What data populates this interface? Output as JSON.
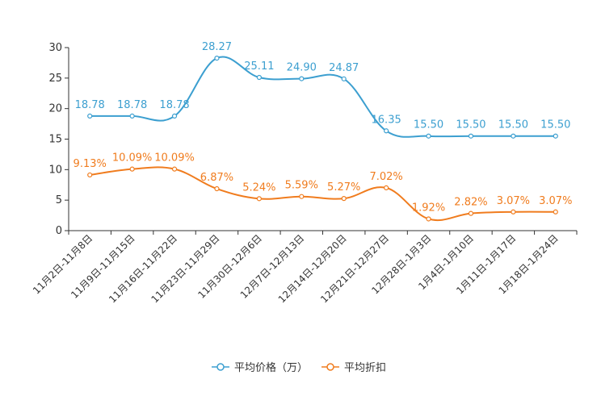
{
  "chart_data": {
    "type": "line",
    "categories": [
      "11月2日-11月8日",
      "11月9日-11月15日",
      "11月16日-11月22日",
      "11月23日-11月29日",
      "11月30日-12月6日",
      "12月7日-12月13日",
      "12月14日-12月20日",
      "12月21日-12月27日",
      "12月28日-1月3日",
      "1月4日-1月10日",
      "1月11日-1月17日",
      "1月18日-1月24日"
    ],
    "ylim": [
      0,
      30
    ],
    "yticks": [
      "0",
      "5",
      "10",
      "15",
      "20",
      "25",
      "30"
    ],
    "series": [
      {
        "name": "平均价格（万）",
        "color": "#3c9fd0",
        "values": [
          18.78,
          18.78,
          18.78,
          28.27,
          25.11,
          24.9,
          24.87,
          16.35,
          15.5,
          15.5,
          15.5,
          15.5
        ],
        "labels": [
          "18.78",
          "18.78",
          "18.78",
          "28.27",
          "25.11",
          "24.90",
          "24.87",
          "16.35",
          "15.50",
          "15.50",
          "15.50",
          "15.50"
        ]
      },
      {
        "name": "平均折扣",
        "color": "#f07c1e",
        "values": [
          9.13,
          10.09,
          10.09,
          6.87,
          5.24,
          5.59,
          5.27,
          7.02,
          1.92,
          2.82,
          3.07,
          3.07
        ],
        "labels": [
          "9.13%",
          "10.09%",
          "10.09%",
          "6.87%",
          "5.24%",
          "5.59%",
          "5.27%",
          "7.02%",
          "1.92%",
          "2.82%",
          "3.07%",
          "3.07%"
        ]
      }
    ]
  }
}
